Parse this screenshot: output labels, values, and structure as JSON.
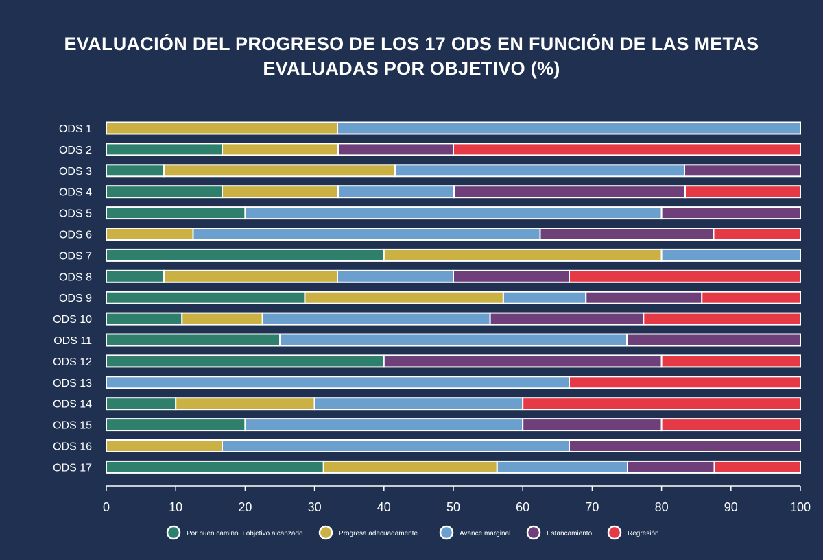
{
  "chart_data": {
    "type": "bar",
    "orientation": "horizontal",
    "stacked": true,
    "title_lines": [
      "EVALUACIÓN DEL PROGRESO DE LOS 17 ODS EN FUNCIÓN DE LAS METAS",
      "EVALUADAS POR OBJETIVO (%)"
    ],
    "categories": [
      "ODS 1",
      "ODS 2",
      "ODS 3",
      "ODS 4",
      "ODS 5",
      "ODS 6",
      "ODS 7",
      "ODS 8",
      "ODS 9",
      "ODS 10",
      "ODS 11",
      "ODS 12",
      "ODS 13",
      "ODS 14",
      "ODS 15",
      "ODS 16",
      "ODS 17"
    ],
    "series": [
      {
        "name": "Por buen camino u objetivo alcanzado",
        "color": "#2e7f6b",
        "values": [
          0,
          16.7,
          8.3,
          16.7,
          20,
          0,
          40,
          8.3,
          28.6,
          10.9,
          25,
          40,
          0,
          10,
          20,
          0,
          31.3
        ]
      },
      {
        "name": "Progresa adecuadamente",
        "color": "#cbb043",
        "values": [
          33.3,
          16.7,
          33.3,
          16.7,
          0,
          12.5,
          40,
          25,
          28.6,
          11.6,
          0,
          0,
          0,
          20,
          0,
          16.7,
          25
        ]
      },
      {
        "name": "Avance marginal",
        "color": "#6b9fce",
        "values": [
          66.7,
          0,
          41.7,
          16.7,
          60,
          50,
          20,
          16.7,
          11.9,
          32.8,
          50,
          0,
          66.7,
          30,
          40,
          50,
          18.8
        ]
      },
      {
        "name": "Estancamiento",
        "color": "#6e3f78",
        "values": [
          0,
          16.6,
          16.7,
          33.3,
          20,
          25,
          0,
          16.7,
          16.7,
          22.1,
          25,
          40,
          0,
          0,
          20,
          33.3,
          12.5
        ]
      },
      {
        "name": "Regresión",
        "color": "#e63946",
        "values": [
          0,
          50,
          0,
          16.6,
          0,
          12.5,
          0,
          33.3,
          14.2,
          22.6,
          0,
          20,
          33.3,
          40,
          20,
          0,
          12.4
        ]
      }
    ],
    "xlim": [
      0,
      100
    ],
    "xticks": [
      0,
      10,
      20,
      30,
      40,
      50,
      60,
      70,
      80,
      90,
      100
    ],
    "xlabel": "",
    "ylabel": "",
    "legend_position": "bottom",
    "grid": false,
    "colors": {
      "background": "#1f3050",
      "bar_border": "#ffffff",
      "axis": "#ffffff"
    }
  }
}
